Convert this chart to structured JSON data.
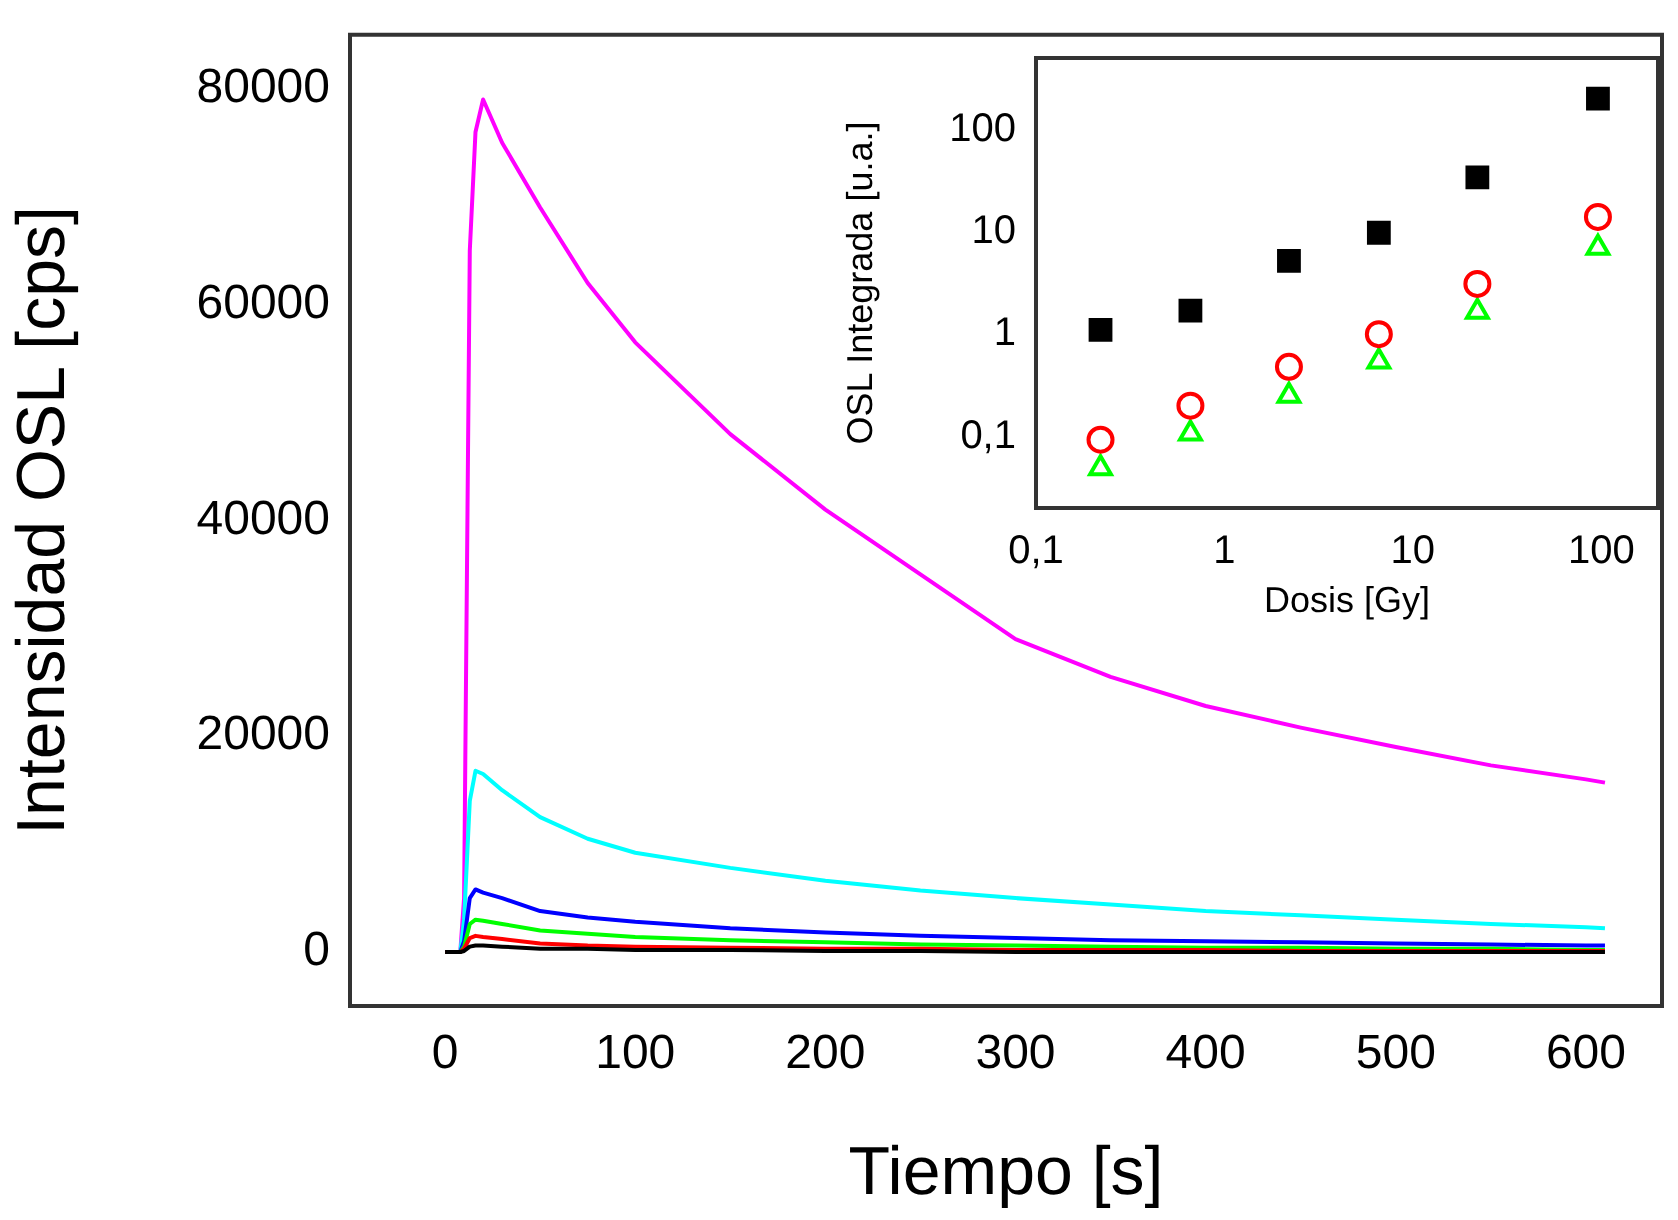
{
  "chart_data": [
    {
      "type": "line",
      "xlabel": "Tiempo [s]",
      "ylabel": "Intensidad OSL [cps]",
      "x": [
        0,
        8,
        10,
        13,
        16,
        20,
        30,
        50,
        75,
        100,
        150,
        200,
        250,
        300,
        350,
        400,
        450,
        500,
        550,
        600,
        610
      ],
      "series": [
        {
          "color": "#000000",
          "values": [
            0,
            0,
            100,
            500,
            600,
            600,
            500,
            300,
            300,
            200,
            200,
            100,
            100,
            0,
            0,
            0,
            0,
            0,
            0,
            0,
            0
          ]
        },
        {
          "color": "#ff0000",
          "values": [
            0,
            0,
            300,
            1300,
            1500,
            1400,
            1200,
            800,
            600,
            500,
            400,
            300,
            300,
            200,
            200,
            200,
            100,
            100,
            100,
            100,
            100
          ]
        },
        {
          "color": "#00ff00",
          "values": [
            0,
            0,
            500,
            2600,
            3000,
            2900,
            2600,
            2000,
            1700,
            1400,
            1100,
            900,
            700,
            600,
            500,
            400,
            400,
            300,
            300,
            200,
            200
          ]
        },
        {
          "color": "#0000ff",
          "values": [
            0,
            0,
            1000,
            5000,
            5800,
            5500,
            5000,
            3800,
            3200,
            2800,
            2200,
            1800,
            1500,
            1300,
            1100,
            1000,
            900,
            800,
            700,
            600,
            600
          ]
        },
        {
          "color": "#00ffff",
          "values": [
            0,
            0,
            3000,
            14000,
            16800,
            16500,
            15000,
            12500,
            10500,
            9200,
            7800,
            6600,
            5700,
            5000,
            4400,
            3800,
            3400,
            3000,
            2600,
            2300,
            2200
          ]
        },
        {
          "color": "#ff00ff",
          "values": [
            0,
            0,
            5000,
            65000,
            76000,
            79000,
            75000,
            69000,
            62000,
            56500,
            48000,
            41000,
            35000,
            29000,
            25500,
            22800,
            20800,
            19000,
            17300,
            16000,
            15700
          ]
        }
      ],
      "xlim": [
        -50,
        640
      ],
      "xticks": [
        0,
        100,
        200,
        300,
        400,
        500,
        600
      ],
      "ylim": [
        -5000,
        85000
      ],
      "yticks": [
        0,
        20000,
        40000,
        60000,
        80000
      ]
    },
    {
      "type": "scatter",
      "xlabel": "Dosis [Gy]",
      "ylabel": "OSL Integrada [u.a.]",
      "log": "xy",
      "x": [
        0.22,
        0.66,
        2.2,
        6.6,
        22,
        96
      ],
      "series": [
        {
          "color": "#000000",
          "marker": "square",
          "values": [
            1.1,
            1.7,
            5.2,
            9.8,
            34,
            200
          ]
        },
        {
          "color": "#ff0000",
          "marker": "circle",
          "values": [
            0.093,
            0.2,
            0.48,
            1.0,
            3.1,
            14
          ]
        },
        {
          "color": "#00ff00",
          "marker": "triangle",
          "values": [
            0.049,
            0.107,
            0.25,
            0.54,
            1.66,
            7
          ]
        }
      ],
      "xlim": [
        0.1,
        200
      ],
      "xticks": [
        {
          "value": 0.1,
          "label": "0,1"
        },
        1,
        10,
        100
      ],
      "ylim": [
        0.02,
        500
      ],
      "yticks": [
        {
          "value": 0.1,
          "label": "0,1"
        },
        1,
        10,
        100
      ]
    }
  ]
}
